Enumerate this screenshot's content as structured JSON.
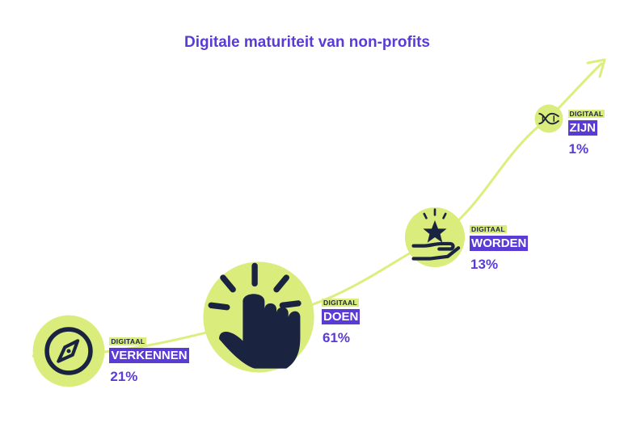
{
  "title": "Digitale maturiteit van non-profits",
  "colors": {
    "accent": "#5a3bd6",
    "lime": "#d9ec7c",
    "curve": "#dcee7e",
    "icon": "#1a2340"
  },
  "chart_data": {
    "type": "bubble-path",
    "title": "Digitale maturiteit van non-profits",
    "stages": [
      {
        "kicker": "DIGITAAL",
        "name": "VERKENNEN",
        "value": 21,
        "label": "21%",
        "icon": "compass-icon"
      },
      {
        "kicker": "DIGITAAL",
        "name": "DOEN",
        "value": 61,
        "label": "61%",
        "icon": "pointer-hand-icon"
      },
      {
        "kicker": "DIGITAAL",
        "name": "WORDEN",
        "value": 13,
        "label": "13%",
        "icon": "hand-star-icon"
      },
      {
        "kicker": "DIGITAAL",
        "name": "ZIJN",
        "value": 1,
        "label": "1%",
        "icon": "dna-icon"
      }
    ]
  }
}
